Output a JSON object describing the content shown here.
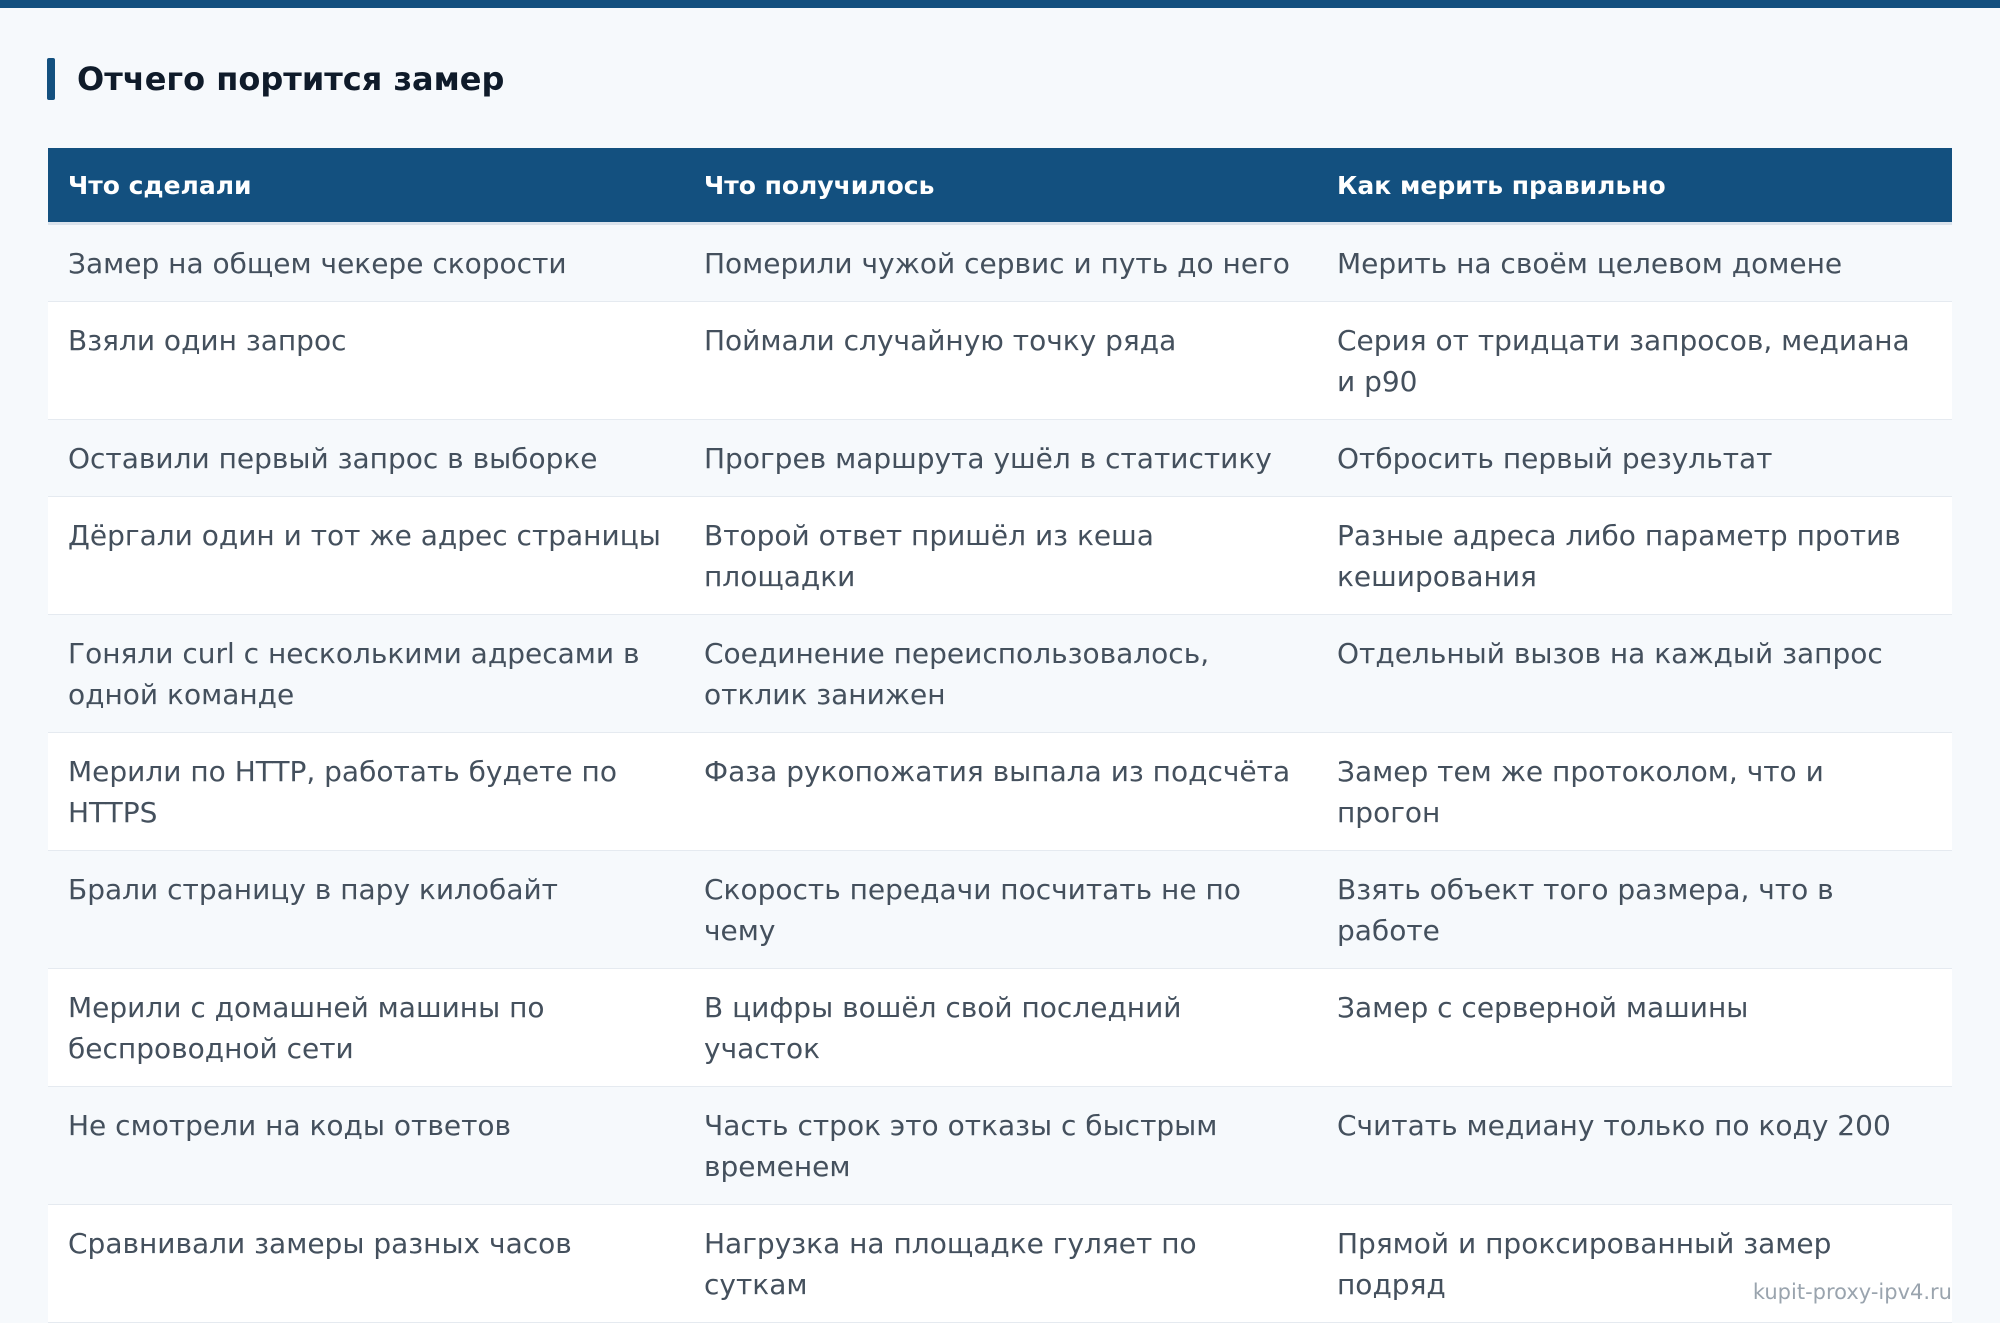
{
  "section": {
    "title": "Отчего портится замер"
  },
  "table": {
    "headers": [
      "Что сделали",
      "Что получилось",
      "Как мерить правильно"
    ],
    "rows": [
      [
        "Замер на общем чекере скорости",
        "Померили чужой сервис и путь до него",
        "Мерить на своём целевом домене"
      ],
      [
        "Взяли один запрос",
        "Поймали случайную точку ряда",
        "Серия от тридцати запросов, медиана и p90"
      ],
      [
        "Оставили первый запрос в выборке",
        "Прогрев маршрута ушёл в статистику",
        "Отбросить первый результат"
      ],
      [
        "Дёргали один и тот же адрес страницы",
        "Второй ответ пришёл из кеша площадки",
        "Разные адреса либо параметр против кеширования"
      ],
      [
        "Гоняли curl с несколькими адресами в одной команде",
        "Соединение переиспользовалось, отклик занижен",
        "Отдельный вызов на каждый запрос"
      ],
      [
        "Мерили по HTTP, работать будете по HTTPS",
        "Фаза рукопожатия выпала из подсчёта",
        "Замер тем же протоколом, что и прогон"
      ],
      [
        "Брали страницу в пару килобайт",
        "Скорость передачи посчитать не по чему",
        "Взять объект того размера, что в работе"
      ],
      [
        "Мерили с домашней машины по беспроводной сети",
        "В цифры вошёл свой последний участок",
        "Замер с серверной машины"
      ],
      [
        "Не смотрели на коды ответов",
        "Часть строк это отказы с быстрым временем",
        "Считать медиану только по коду 200"
      ],
      [
        "Сравнивали замеры разных часов",
        "Нагрузка на площадке гуляет по суткам",
        "Прямой и проксированный замер подряд"
      ]
    ]
  },
  "watermark": "kupit-proxy-ipv4.ru",
  "colors": {
    "accent": "#13507f",
    "background": "#f6f9fc",
    "row_alt": "#ffffff",
    "text": "#44505d"
  }
}
